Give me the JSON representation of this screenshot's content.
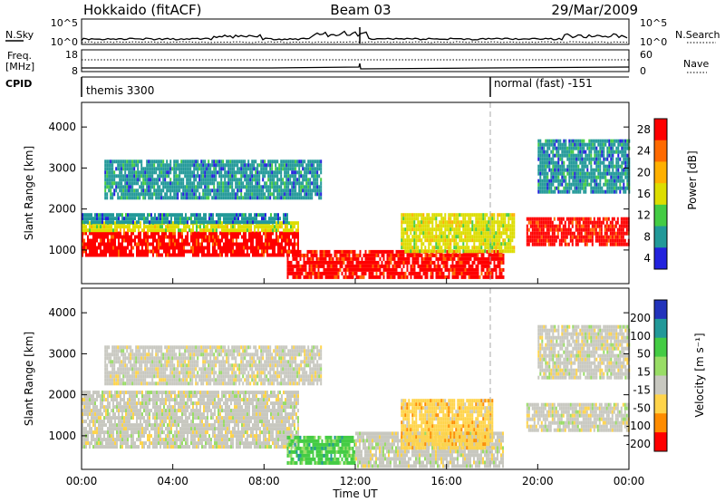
{
  "header": {
    "left": "Hokkaido (fitACF)",
    "center": "Beam 03",
    "right": "29/Mar/2009"
  },
  "noise_panel": {
    "label": "N.Sky",
    "right_label": "N.Search",
    "left_ticks": [
      "10^5",
      "10^0"
    ],
    "right_ticks": [
      "10^5",
      "10^0"
    ]
  },
  "freq_panel": {
    "label_line1": "Freq.",
    "label_line2": "[MHz]",
    "right_label": "Nave",
    "left_ticks": [
      "18",
      "8"
    ],
    "right_ticks": [
      "60",
      "0"
    ]
  },
  "cpid_panel": {
    "label": "CPID",
    "modes": [
      {
        "text": "themis 3300",
        "start_hour": 0
      },
      {
        "text": "normal (fast) -151",
        "start_hour": 18
      }
    ]
  },
  "power_panel": {
    "ylabel": "Slant Range [km]",
    "yticks": [
      1000,
      2000,
      3000,
      4000
    ],
    "colorbar_label": "Power [dB]",
    "colorbar_ticks": [
      "28",
      "24",
      "20",
      "16",
      "12",
      "8",
      "4"
    ]
  },
  "velocity_panel": {
    "ylabel": "Slant Range [km]",
    "yticks": [
      1000,
      2000,
      3000,
      4000
    ],
    "colorbar_label": "Velocity [m s⁻¹]",
    "colorbar_ticks": [
      "200",
      "100",
      "50",
      "15",
      "-15",
      "-50",
      "-100",
      "-200"
    ]
  },
  "x_axis": {
    "label": "Time UT",
    "ticks": [
      "00:00",
      "04:00",
      "08:00",
      "12:00",
      "16:00",
      "20:00",
      "00:00"
    ]
  },
  "chart_data": [
    {
      "type": "heatmap",
      "title": "",
      "xlabel": "Time UT",
      "ylabel": "Slant Range [km]",
      "xlim": [
        0,
        24
      ],
      "ylim": [
        180,
        4600
      ],
      "colorbar": "Power [dB]",
      "color_levels": [
        {
          "value": 28,
          "color": "#ff0000"
        },
        {
          "value": 24,
          "color": "#ff6a00"
        },
        {
          "value": 20,
          "color": "#ffb000"
        },
        {
          "value": 16,
          "color": "#dddd00"
        },
        {
          "value": 12,
          "color": "#44cc44"
        },
        {
          "value": 8,
          "color": "#229999"
        },
        {
          "value": 4,
          "color": "#2222dd"
        }
      ],
      "regions": [
        {
          "t0": 0,
          "t1": 9.5,
          "r0": 900,
          "r1": 1450,
          "level": 28
        },
        {
          "t0": 0,
          "t1": 9.5,
          "r0": 1450,
          "r1": 1700,
          "level": 16
        },
        {
          "t0": 0,
          "t1": 9,
          "r0": 1700,
          "r1": 1900,
          "level": 8
        },
        {
          "t0": 1,
          "t1": 10.5,
          "r0": 2300,
          "r1": 3200,
          "level": 8
        },
        {
          "t0": 9,
          "t1": 18.5,
          "r0": 300,
          "r1": 1000,
          "level": 28
        },
        {
          "t0": 14,
          "t1": 19,
          "r0": 1000,
          "r1": 1900,
          "level": 16
        },
        {
          "t0": 19.5,
          "t1": 24,
          "r0": 1100,
          "r1": 1800,
          "level": 28
        },
        {
          "t0": 20,
          "t1": 24,
          "r0": 2400,
          "r1": 3700,
          "level": 8
        }
      ]
    },
    {
      "type": "heatmap",
      "title": "",
      "xlabel": "Time UT",
      "ylabel": "Slant Range [km]",
      "xlim": [
        0,
        24
      ],
      "ylim": [
        180,
        4600
      ],
      "colorbar": "Velocity [m s⁻¹]",
      "color_levels": [
        {
          "value": 200,
          "color": "#2233bb"
        },
        {
          "value": 100,
          "color": "#229999"
        },
        {
          "value": 50,
          "color": "#44cc44"
        },
        {
          "value": 15,
          "color": "#99dd66"
        },
        {
          "value": -15,
          "color": "#c8c8c0"
        },
        {
          "value": -50,
          "color": "#ffd44a"
        },
        {
          "value": -100,
          "color": "#ff8c00"
        },
        {
          "value": -200,
          "color": "#ff0000"
        }
      ],
      "regions": [
        {
          "t0": 0,
          "t1": 9.5,
          "r0": 700,
          "r1": 2100,
          "level": -15
        },
        {
          "t0": 1,
          "t1": 10.5,
          "r0": 2300,
          "r1": 3200,
          "level": -15
        },
        {
          "t0": 9,
          "t1": 12,
          "r0": 300,
          "r1": 1000,
          "level": 50
        },
        {
          "t0": 12,
          "t1": 18.5,
          "r0": 300,
          "r1": 1100,
          "level": -15
        },
        {
          "t0": 14,
          "t1": 18,
          "r0": 700,
          "r1": 1900,
          "level": -50
        },
        {
          "t0": 19.5,
          "t1": 24,
          "r0": 1100,
          "r1": 1800,
          "level": -15
        },
        {
          "t0": 20,
          "t1": 24,
          "r0": 2400,
          "r1": 3700,
          "level": -15
        }
      ]
    }
  ]
}
